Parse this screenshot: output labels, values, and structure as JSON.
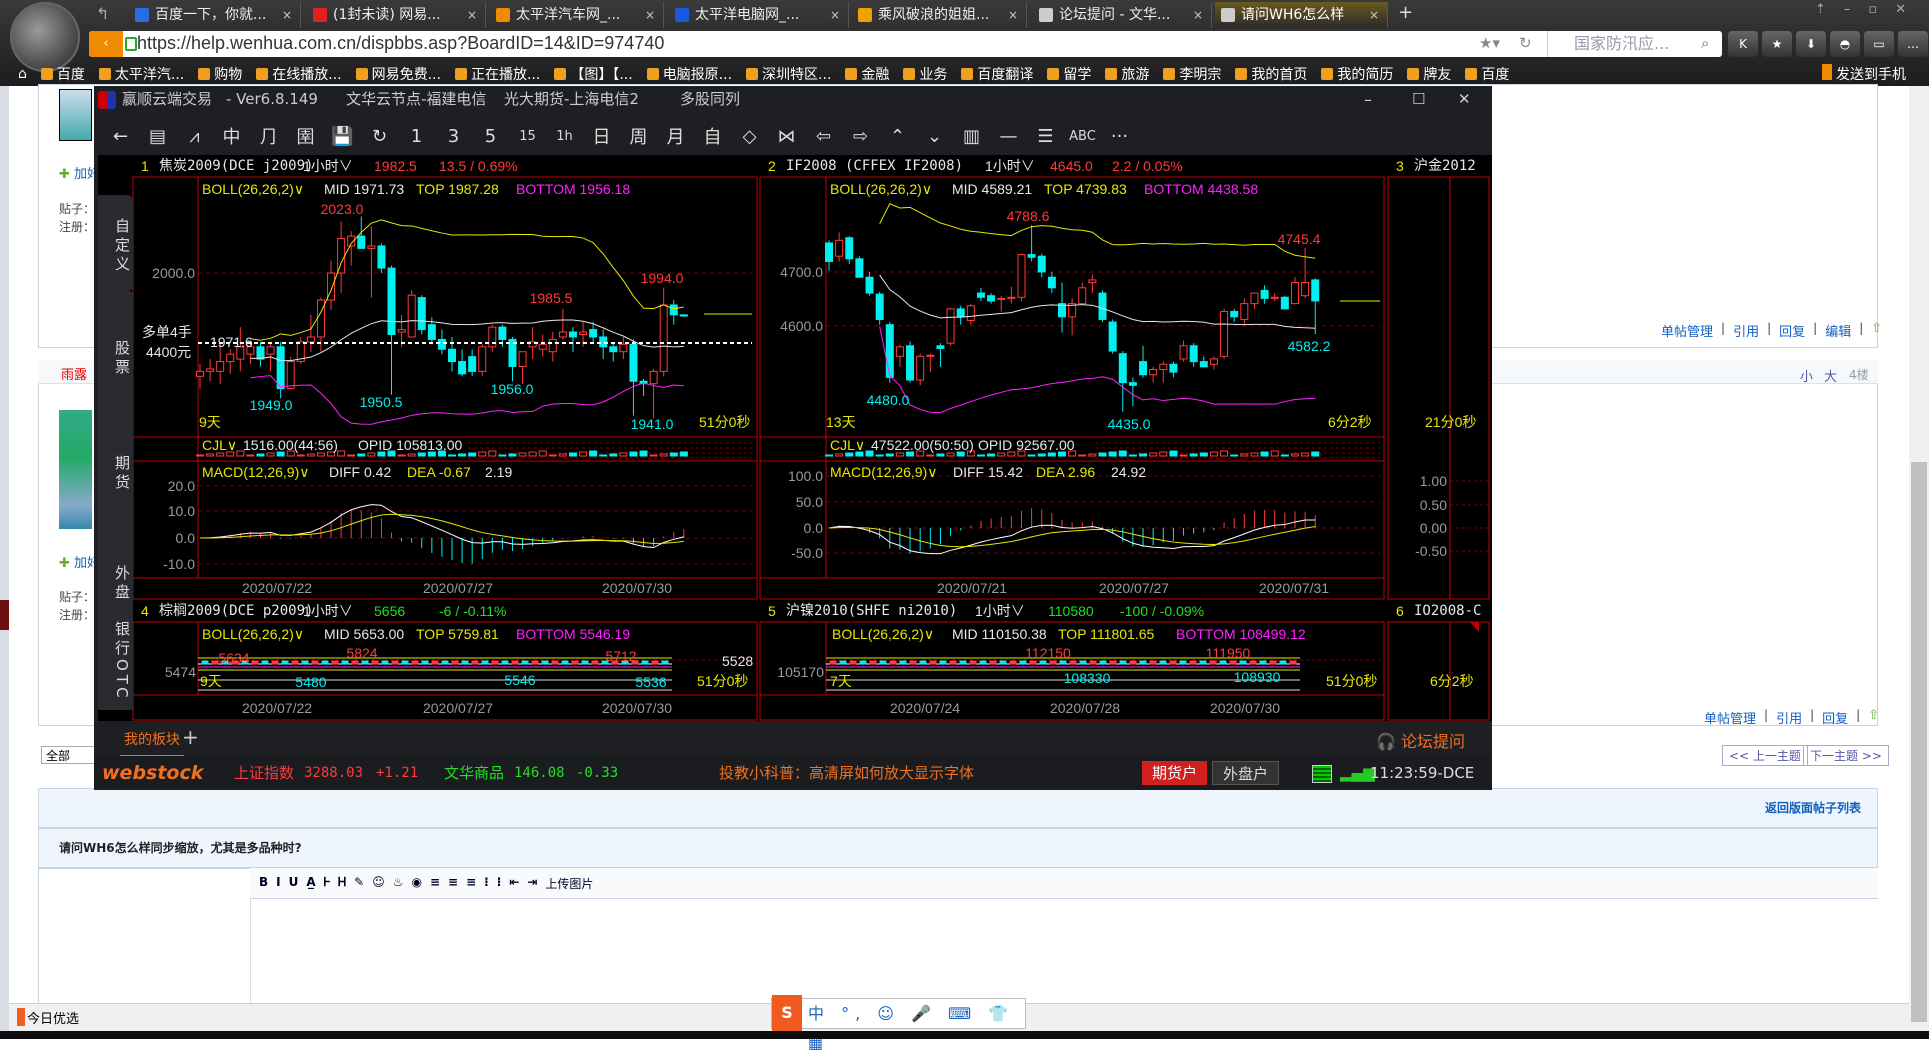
{
  "browser": {
    "tabs": [
      {
        "label": "百度一下，你就...",
        "icon_color": "#2a6de0"
      },
      {
        "label": "(1封未读) 网易...",
        "icon_color": "#d22"
      },
      {
        "label": "太平洋汽车网_...",
        "icon_color": "#f08a00"
      },
      {
        "label": "太平洋电脑网_...",
        "icon_color": "#1a5adf"
      },
      {
        "label": "乘风破浪的姐姐...",
        "icon_color": "#f0a000"
      },
      {
        "label": "论坛提问 - 文华...",
        "icon_color": "#ccc"
      },
      {
        "label": "请问WH6怎么样",
        "icon_color": "#ccc",
        "active": true
      }
    ],
    "new_tab": "+",
    "url": "https://help.wenhua.com.cn/dispbbs.asp?BoardID=14&ID=974740",
    "search_placeholder": "国家防汛应...",
    "bookmarks": [
      "百度",
      "太平洋汽...",
      "购物",
      "在线播放...",
      "网易免费...",
      "正在播放...",
      "【图】【...",
      "电脑报原...",
      "深圳特区...",
      "金融",
      "业务",
      "百度翻译",
      "留学",
      "旅游",
      "李明宗",
      "我的首页",
      "我的简历",
      "牌友",
      "百度"
    ],
    "send_to_phone": "发送到手机"
  },
  "app": {
    "name": "赢顺云端交易",
    "version": "- Ver6.8.149",
    "node": "文华云节点-福建电信",
    "broker": "光大期货-上海电信2",
    "layout": "多股同列",
    "toolbar": [
      "←",
      "▤",
      "⩘",
      "中",
      "⺆",
      "圉",
      "💾",
      "↻",
      "1",
      "3",
      "5",
      "15",
      "1h",
      "日",
      "周",
      "月",
      "自",
      "◇",
      "⋈",
      "⇦",
      "⇨",
      "⌃",
      "⌄",
      "▥",
      "—",
      "☰",
      "ABC",
      "···"
    ],
    "side_tabs": [
      "自定义",
      "股票",
      "期货",
      "外盘",
      "银行OTC"
    ],
    "panels": [
      {
        "index": "1",
        "symbol": "焦炭2009(DCE j2009)",
        "period": "1小时∨",
        "price": "1982.5",
        "change": "13.5 / 0.69%",
        "boll": {
          "label": "BOLL(26,26,2)∨",
          "mid": "MID 1971.73",
          "top": "TOP 1987.28",
          "bottom": "BOTTOM 1956.18"
        },
        "annotations": {
          "high": "2023.0",
          "h2": "1994.0",
          "h3": "1985.5",
          "l1": "1949.0",
          "l2": "1950.5",
          "l3": "1956.0",
          "low": "1941.0",
          "days": "9天",
          "countdown": "51分0秒",
          "last": "1971.6",
          "pos1": "多单4手",
          "pos2": "4400元"
        },
        "price_ticks": [
          "2000.0"
        ],
        "cjl": {
          "label": "CJL∨",
          "value": "1516.00(44:56)",
          "opid": "OPID 105813.00"
        },
        "macd": {
          "label": "MACD(12,26,9)∨",
          "diff": "DIFF 0.42",
          "dea": "DEA -0.67",
          "macd": "2.19",
          "ticks": [
            "20.0",
            "10.0",
            "0.0",
            "-10.0"
          ]
        },
        "dates": [
          "2020/07/22",
          "2020/07/27",
          "2020/07/30"
        ]
      },
      {
        "index": "2",
        "symbol": "IF2008  (CFFEX IF2008)",
        "period": "1小时∨",
        "price": "4645.0",
        "change": "2.2 / 0.05%",
        "boll": {
          "label": "BOLL(26,26,2)∨",
          "mid": "MID 4589.21",
          "top": "TOP 4739.83",
          "bottom": "BOTTOM 4438.58"
        },
        "annotations": {
          "high": "4788.6",
          "h2": "4745.4",
          "l1": "4480.0",
          "low": "4435.0",
          "l3": "4582.2",
          "days": "13天",
          "countdown": "6分2秒"
        },
        "price_ticks": [
          "4700.0",
          "4600.0"
        ],
        "cjl": {
          "label": "CJL∨",
          "value": "47522.00(50:50)",
          "opid": "OPID 92567.00"
        },
        "macd": {
          "label": "MACD(12,26,9)∨",
          "diff": "DIFF 15.42",
          "dea": "DEA 2.96",
          "macd": "24.92",
          "ticks": [
            "100.0",
            "50.0",
            "0.0",
            "-50.0"
          ]
        },
        "dates": [
          "2020/07/21",
          "2020/07/27",
          "2020/07/31"
        ]
      },
      {
        "index": "3",
        "symbol": "沪金2012",
        "countdown": "21分0秒",
        "ticks": [
          "1.00",
          "0.50",
          "0.00",
          "-0.50"
        ]
      },
      {
        "index": "4",
        "symbol": "棕榈2009(DCE p2009)",
        "period": "1小时∨",
        "price": "5656",
        "change": "-6 / -0.11%",
        "boll": {
          "label": "BOLL(26,26,2)∨",
          "mid": "MID 5653.00",
          "top": "TOP 5759.81",
          "bottom": "BOTTOM 5546.19"
        },
        "annotations": {
          "h1": "5634",
          "h2": "5824",
          "h3": "5712",
          "l1": "5480",
          "l2": "5546",
          "l3": "5536",
          "axis": "5474",
          "right": "5528",
          "days": "9天",
          "countdown": "51分0秒"
        },
        "dates": [
          "2020/07/22",
          "2020/07/27",
          "2020/07/30"
        ]
      },
      {
        "index": "5",
        "symbol": "沪镍2010(SHFE ni2010)",
        "period": "1小时∨",
        "price": "110580",
        "change": "-100 / -0.09%",
        "boll": {
          "label": "BOLL(26,26,2)∨",
          "mid": "MID 110150.38",
          "top": "TOP 111801.65",
          "bottom": "BOTTOM 108499.12"
        },
        "annotations": {
          "h1": "112150",
          "h2": "111950",
          "l1": "108330",
          "l2": "108930",
          "axis": "105170",
          "days": "7天",
          "countdown": "51分0秒"
        },
        "dates": [
          "2020/07/24",
          "2020/07/28",
          "2020/07/30"
        ]
      },
      {
        "index": "6",
        "symbol": "IO2008-C",
        "countdown": "6分2秒"
      }
    ],
    "bottom_tabs": {
      "my_block": "我的板块",
      "add": "+",
      "forum_ask": "论坛提问"
    },
    "status": {
      "logo": "webstock",
      "idx1_name": "上证指数",
      "idx1_value": "3288.03",
      "idx1_change": "+1.21",
      "idx2_name": "文华商品",
      "idx2_value": "146.08",
      "idx2_change": "-0.33",
      "tip": "投教小科普：高清屏如何放大显示字体",
      "futures_account": "期货户",
      "foreign_account": "外盘户",
      "time": "11:23:59-DCE"
    },
    "colors": {
      "up": "#ff3a3a",
      "down": "#00f0f0",
      "boll_top": "#e8e800",
      "boll_mid": "#e8e8e8",
      "boll_bottom": "#ff20ff",
      "grid": "#8a0000"
    }
  },
  "forum": {
    "add_friend": "加好",
    "posts_label": "贴子：",
    "register_label": "注册：",
    "username": "雨露",
    "post_actions": [
      "单帖管理",
      "引用",
      "回复",
      "编辑"
    ],
    "post_actions_2": [
      "单帖管理",
      "引用",
      "回复"
    ],
    "font_small": "小",
    "font_large": "大",
    "floor": "4楼",
    "prev_topic": "<< 上一主题",
    "next_topic": "下一主题 >>",
    "filter": "全部",
    "back_to_list": "返回版面帖子列表",
    "reply_title": "请问WH6怎么样同步缩放，尤其是多品种时?",
    "editor_toolbar": [
      "B",
      "I",
      "U",
      "A̲",
      "Ꮀ",
      "Ꮋ",
      "✎",
      "☺",
      "♨",
      "◉",
      "≡",
      "≡",
      "≡",
      "⁝",
      "⁝",
      "⇤",
      "⇥"
    ],
    "upload_image": "上传图片",
    "today_pick": "今日优选"
  },
  "chart_data": [
    {
      "type": "candlestick",
      "title": "焦炭2009(DCE j2009) 1小时",
      "ylabel": "",
      "ylim": [
        1935,
        2030
      ],
      "x_ticks": [
        "2020/07/22",
        "2020/07/27",
        "2020/07/30"
      ],
      "ohlc": [
        [
          1958,
          1963,
          1953,
          1960
        ],
        [
          1960,
          1965,
          1956,
          1961
        ],
        [
          1960,
          1972,
          1955,
          1964
        ],
        [
          1964,
          1969,
          1959,
          1967
        ],
        [
          1965,
          1978,
          1960,
          1970
        ],
        [
          1967,
          1972,
          1963,
          1970
        ],
        [
          1970,
          1972,
          1962,
          1965
        ],
        [
          1967,
          1972,
          1960,
          1970
        ],
        [
          1970,
          1972,
          1949,
          1953
        ],
        [
          1953,
          1966,
          1953,
          1964
        ],
        [
          1964,
          1974,
          1963,
          1972
        ],
        [
          1972,
          1983,
          1968,
          1974
        ],
        [
          1974,
          1990,
          1968,
          1989
        ],
        [
          1989,
          2005,
          1985,
          2000
        ],
        [
          2000,
          2021,
          1992,
          2014
        ],
        [
          2011,
          2017,
          2003,
          2015
        ],
        [
          2015,
          2023,
          2010,
          2010
        ],
        [
          2010,
          2019,
          1990,
          2011
        ],
        [
          2011,
          2012,
          2000,
          2002
        ],
        [
          2002,
          2003,
          1950.5,
          1975
        ],
        [
          1976,
          1983,
          1970,
          1977
        ],
        [
          1974,
          1993,
          1974,
          1991
        ],
        [
          1990,
          1991,
          1975,
          1977
        ],
        [
          1979,
          1982,
          1971,
          1973
        ],
        [
          1973,
          1977,
          1967,
          1969
        ],
        [
          1969,
          1974,
          1960,
          1964
        ],
        [
          1964,
          1969,
          1958,
          1959
        ],
        [
          1966,
          1969,
          1958,
          1960
        ],
        [
          1960,
          1971,
          1958,
          1970
        ],
        [
          1970,
          1979,
          1968,
          1978
        ],
        [
          1978,
          1979,
          1970,
          1973
        ],
        [
          1973,
          1974,
          1956,
          1962
        ],
        [
          1962,
          1968,
          1955,
          1968
        ],
        [
          1970,
          1978,
          1965,
          1972
        ],
        [
          1969,
          1975,
          1966,
          1971
        ],
        [
          1968,
          1976,
          1964,
          1973
        ],
        [
          1974,
          1985.5,
          1973,
          1976
        ],
        [
          1976,
          1978,
          1968,
          1974
        ],
        [
          1975,
          1980,
          1970,
          1976
        ],
        [
          1977,
          1980,
          1972,
          1974
        ],
        [
          1974,
          1977,
          1965,
          1970
        ],
        [
          1970,
          1972,
          1964,
          1968
        ],
        [
          1968,
          1974,
          1965,
          1971
        ],
        [
          1971,
          1973,
          1942,
          1956
        ],
        [
          1956,
          1957,
          1950,
          1955
        ],
        [
          1955,
          1961,
          1941,
          1960
        ],
        [
          1960,
          1994,
          1958,
          1987
        ],
        [
          1987,
          1989,
          1979,
          1983
        ],
        [
          1983,
          1983,
          1982.5,
          1982.5
        ]
      ]
    },
    {
      "type": "candlestick",
      "title": "IF2008 (CFFEX IF2008) 1小时",
      "ylabel": "",
      "ylim": [
        4420,
        4800
      ],
      "x_ticks": [
        "2020/07/21",
        "2020/07/27",
        "2020/07/31"
      ],
      "ohlc": [
        [
          4755,
          4760,
          4703,
          4720
        ],
        [
          4730,
          4775,
          4720,
          4760
        ],
        [
          4765,
          4768,
          4715,
          4725
        ],
        [
          4725,
          4730,
          4690,
          4690
        ],
        [
          4690,
          4700,
          4655,
          4660
        ],
        [
          4658,
          4662,
          4600,
          4610
        ],
        [
          4600,
          4605,
          4490,
          4500
        ],
        [
          4540,
          4562,
          4520,
          4558
        ],
        [
          4560,
          4568,
          4490,
          4495
        ],
        [
          4495,
          4545,
          4485,
          4540
        ],
        [
          4540,
          4545,
          4510,
          4542
        ],
        [
          4560,
          4565,
          4520,
          4555
        ],
        [
          4565,
          4632,
          4560,
          4630
        ],
        [
          4630,
          4636,
          4600,
          4615
        ],
        [
          4608,
          4640,
          4600,
          4636
        ],
        [
          4660,
          4670,
          4645,
          4652
        ],
        [
          4655,
          4660,
          4640,
          4645
        ],
        [
          4648,
          4655,
          4625,
          4650
        ],
        [
          4650,
          4672,
          4640,
          4652
        ],
        [
          4652,
          4735,
          4645,
          4733
        ],
        [
          4733,
          4788.6,
          4720,
          4728
        ],
        [
          4730,
          4735,
          4690,
          4700
        ],
        [
          4690,
          4700,
          4660,
          4670
        ],
        [
          4640,
          4680,
          4585,
          4615
        ],
        [
          4615,
          4650,
          4580,
          4640
        ],
        [
          4640,
          4680,
          4640,
          4670
        ],
        [
          4680,
          4695,
          4660,
          4685
        ],
        [
          4660,
          4665,
          4605,
          4610
        ],
        [
          4605,
          4610,
          4545,
          4550
        ],
        [
          4545,
          4550,
          4435,
          4490
        ],
        [
          4490,
          4500,
          4445,
          4485
        ],
        [
          4530,
          4560,
          4500,
          4505
        ],
        [
          4505,
          4520,
          4490,
          4515
        ],
        [
          4515,
          4530,
          4490,
          4525
        ],
        [
          4525,
          4530,
          4500,
          4510
        ],
        [
          4535,
          4570,
          4530,
          4560
        ],
        [
          4560,
          4565,
          4520,
          4530
        ],
        [
          4530,
          4540,
          4520,
          4520
        ],
        [
          4525,
          4540,
          4515,
          4535
        ],
        [
          4540,
          4630,
          4535,
          4625
        ],
        [
          4625,
          4630,
          4605,
          4615
        ],
        [
          4610,
          4650,
          4600,
          4640
        ],
        [
          4640,
          4660,
          4630,
          4660
        ],
        [
          4665,
          4675,
          4640,
          4650
        ],
        [
          4650,
          4660,
          4645,
          4652
        ],
        [
          4652,
          4655,
          4630,
          4630
        ],
        [
          4640,
          4690,
          4640,
          4680
        ],
        [
          4655,
          4745.4,
          4650,
          4680
        ],
        [
          4685,
          4688,
          4582.2,
          4645
        ]
      ]
    }
  ]
}
